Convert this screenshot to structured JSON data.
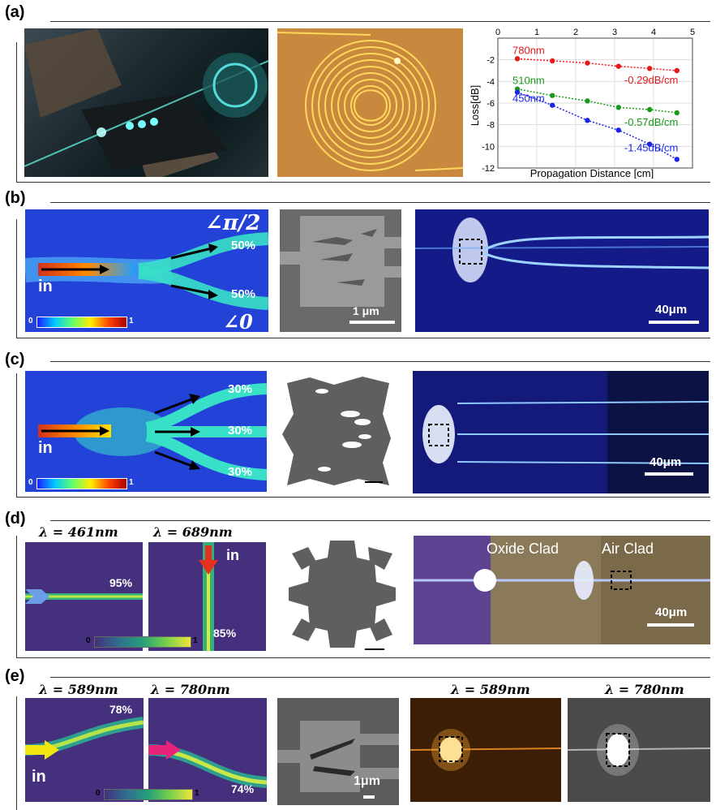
{
  "panels": {
    "a": {
      "label": "(a)"
    },
    "b": {
      "label": "(b)",
      "angle_top": "∠π/2",
      "angle_bottom": "∠0",
      "pct_top": "50%",
      "pct_bottom": "50%",
      "in": "in",
      "sem_scale": "1 μm",
      "img_scale": "40μm",
      "cb_min": "0",
      "cb_max": "1"
    },
    "c": {
      "label": "(c)",
      "pct1": "30%",
      "pct2": "30%",
      "pct3": "30%",
      "in": "in",
      "img_scale": "40μm",
      "cb_min": "0",
      "cb_max": "1"
    },
    "d": {
      "label": "(d)",
      "lambda1": "λ = 461nm",
      "lambda2": "λ = 689nm",
      "pct1": "95%",
      "pct2": "85%",
      "in": "in",
      "oxide": "Oxide Clad",
      "air": "Air Clad",
      "img_scale": "40μm",
      "cb_min": "0",
      "cb_max": "1"
    },
    "e": {
      "label": "(e)",
      "lambda1": "λ = 589nm",
      "lambda2": "λ = 780nm",
      "lambda3": "λ = 589nm",
      "lambda4": "λ = 780nm",
      "pct1": "78%",
      "pct2": "74%",
      "in": "in",
      "sem_scale": "1μm",
      "cb_min": "0",
      "cb_max": "1"
    }
  },
  "chart_data": {
    "type": "scatter",
    "title": "",
    "xlabel": "Propagation Distance [cm]",
    "ylabel": "Loss[dB]",
    "xlim": [
      0,
      5
    ],
    "ylim": [
      -12,
      0
    ],
    "x_ticks": [
      "0",
      "1",
      "2",
      "3",
      "4",
      "5"
    ],
    "y_ticks": [
      "-2",
      "-4",
      "-6",
      "-8",
      "-10",
      "-12"
    ],
    "grid": true,
    "series": [
      {
        "name": "780nm",
        "color": "#e8191b",
        "fit_label": "-0.29dB/cm",
        "x": [
          0.5,
          1.4,
          2.3,
          3.1,
          3.9,
          4.6
        ],
        "y": [
          -1.9,
          -2.1,
          -2.3,
          -2.6,
          -2.8,
          -3.0
        ]
      },
      {
        "name": "510nm",
        "color": "#1a9a1a",
        "fit_label": "-0.57dB/cm",
        "x": [
          0.5,
          1.4,
          2.3,
          3.1,
          3.9,
          4.6
        ],
        "y": [
          -4.7,
          -5.3,
          -5.8,
          -6.4,
          -6.6,
          -6.9
        ]
      },
      {
        "name": "450nm",
        "color": "#1a26e6",
        "fit_label": "-1.45dB/cm",
        "x": [
          0.5,
          1.4,
          2.3,
          3.1,
          3.9,
          4.6
        ],
        "y": [
          -5.0,
          -6.2,
          -7.6,
          -8.5,
          -9.8,
          -11.2
        ]
      }
    ]
  }
}
